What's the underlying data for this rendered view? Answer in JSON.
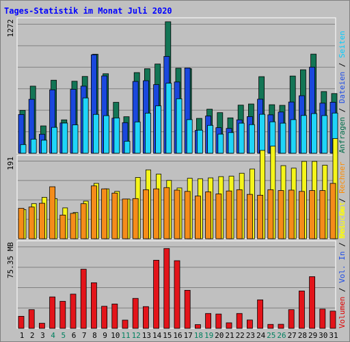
{
  "chart_data": {
    "title": "Tages-Statistik im Monat Juli 2020",
    "type": "bar",
    "days": [
      "1",
      "2",
      "3",
      "4",
      "5",
      "6",
      "7",
      "8",
      "9",
      "10",
      "11",
      "12",
      "13",
      "14",
      "15",
      "16",
      "17",
      "18",
      "19",
      "20",
      "21",
      "22",
      "23",
      "24",
      "25",
      "26",
      "27",
      "28",
      "29",
      "30",
      "31"
    ],
    "weekend_days": [
      "4",
      "5",
      "11",
      "12",
      "18",
      "19",
      "25",
      "26"
    ],
    "panels": [
      {
        "id": "requests",
        "ytick": "1272",
        "ymax": 1272,
        "legend": [
          {
            "label": "Anfragen",
            "color": "#006e4a"
          },
          {
            "label": "Dateien",
            "color": "#1e4ce6"
          },
          {
            "label": "Seiten",
            "color": "#00ccff"
          }
        ],
        "series": [
          {
            "name": "Anfragen",
            "color": "#137555",
            "values": [
              411,
              643,
              262,
              700,
              320,
              690,
              736,
              949,
              762,
              488,
              350,
              773,
              810,
              855,
              1260,
              815,
              811,
              334,
              422,
              389,
              339,
              461,
              472,
              734,
              465,
              459,
              740,
              800,
              950,
              591,
              572
            ]
          },
          {
            "name": "Dateien",
            "color": "#1a48dd",
            "values": [
              371,
              517,
              182,
              608,
              290,
              613,
              643,
              944,
              741,
              336,
              293,
              688,
              695,
              658,
              928,
              683,
              817,
              219,
              357,
              245,
              238,
              320,
              351,
              518,
              368,
              395,
              491,
              551,
              825,
              480,
              489
            ]
          },
          {
            "name": "Seiten",
            "color": "#1fd5f8",
            "values": [
              83,
              135,
              125,
              248,
              289,
              272,
              530,
              372,
              360,
              338,
              115,
              300,
              384,
              454,
              671,
              522,
              322,
              221,
              267,
              183,
              198,
              288,
              274,
              373,
              301,
              288,
              322,
              362,
              380,
              361,
              385
            ]
          }
        ]
      },
      {
        "id": "visits",
        "ytick": "191",
        "ymax": 191,
        "legend": [
          {
            "label": "Besuche",
            "color": "#ffff00"
          },
          {
            "label": "Rechner",
            "color": "#ff8c00"
          }
        ],
        "series": [
          {
            "name": "Besuche",
            "color": "#f5f51b",
            "values": [
              69,
              83,
              98,
              95,
              73,
              62,
              89,
              131,
              118,
              112,
              94,
              145,
              163,
              153,
              138,
              120,
              143,
              142,
              144,
              147,
              148,
              155,
              165,
              209,
              219,
              173,
              167,
              183,
              183,
              174,
              237
            ]
          },
          {
            "name": "Rechner",
            "color": "#f58c1a",
            "values": [
              72,
              75,
              84,
              123,
              56,
              60,
              83,
              125,
              118,
              108,
              94,
              95,
              116,
              118,
              121,
              115,
              112,
              101,
              111,
              106,
              113,
              116,
              105,
              103,
              116,
              114,
              115,
              112,
              114,
              114,
              131
            ]
          }
        ]
      },
      {
        "id": "volume",
        "ytick": "75.35 MB",
        "ymax": 75.35,
        "legend": [
          {
            "label": "Volumen",
            "color": "#e00000"
          },
          {
            "label": "Vol. In",
            "color": "#1e4ce6"
          },
          {
            "label": "Vol. Out",
            "color": "#ffff00"
          }
        ],
        "series": [
          {
            "name": "Volumen",
            "color": "#e3141a",
            "values": [
              10.7,
              16.6,
              4.5,
              27.9,
              24.0,
              30.4,
              52.5,
              40.5,
              19.6,
              21.6,
              7.3,
              26.6,
              19.3,
              60.5,
              70.9,
              60.1,
              33.8,
              3.3,
              13.2,
              12.7,
              4.9,
              13.2,
              7.4,
              25.3,
              3.5,
              3.6,
              16.6,
              33.2,
              45.9,
              17.1,
              15.3
            ]
          }
        ]
      }
    ]
  }
}
